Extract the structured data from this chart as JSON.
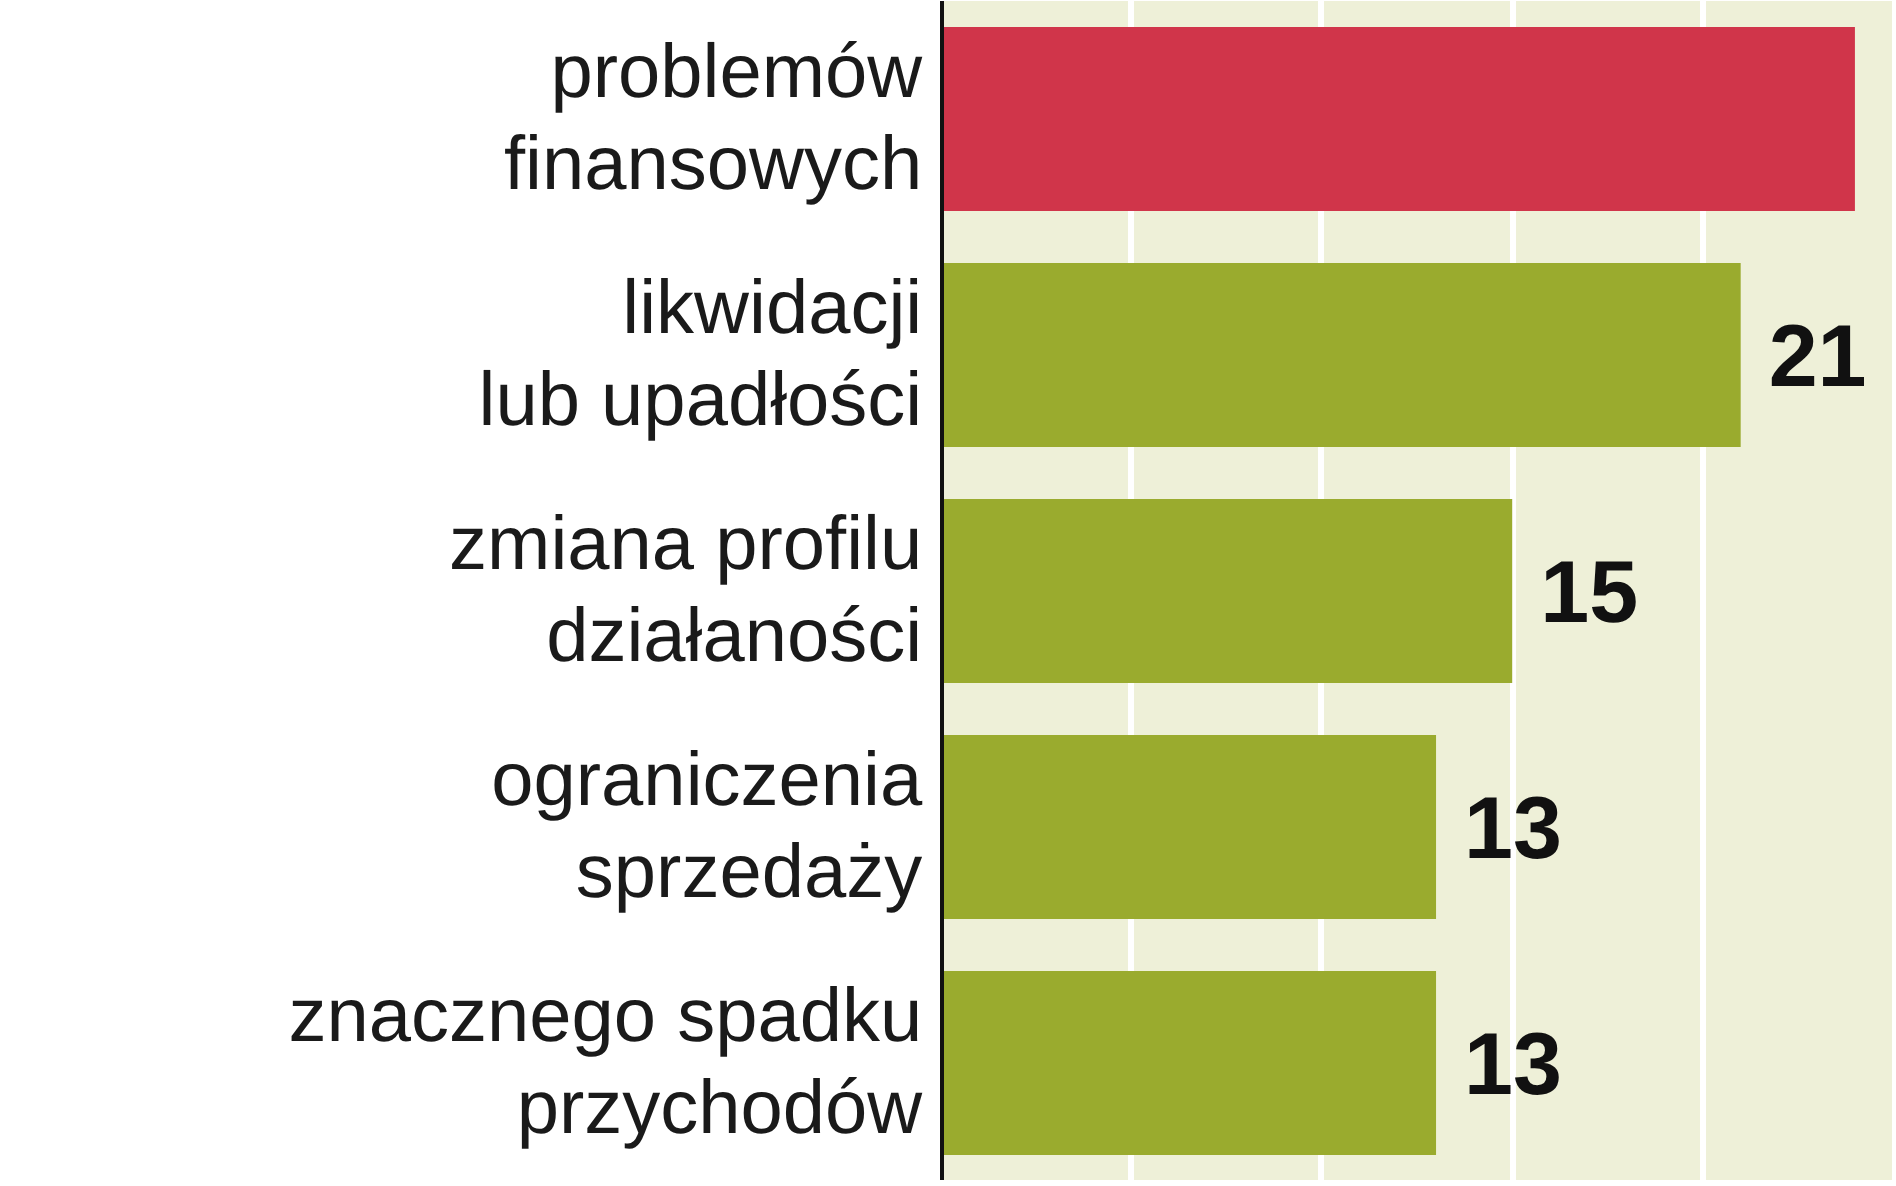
{
  "chart_data": {
    "type": "bar",
    "orientation": "horizontal",
    "categories": [
      "problemów finansowych",
      "likwidacji lub upadłości",
      "zmiana profilu działaności",
      "ograniczenia sprzedaży",
      "znacznego spadku przychodów"
    ],
    "values": [
      24,
      21,
      15,
      13,
      13
    ],
    "colors": [
      "#d0354a",
      "#9aab2e",
      "#9aab2e",
      "#9aab2e",
      "#9aab2e"
    ],
    "value_labels": [
      null,
      "21",
      "15",
      "13",
      "13"
    ],
    "xlim": [
      0,
      25
    ],
    "xticks": [
      {
        "value": 5,
        "label": null
      },
      {
        "value": 10,
        "label": null
      },
      {
        "value": 15,
        "label": null
      },
      {
        "value": 20,
        "label": null
      }
    ],
    "grid": "x",
    "tick_labels": "y"
  }
}
